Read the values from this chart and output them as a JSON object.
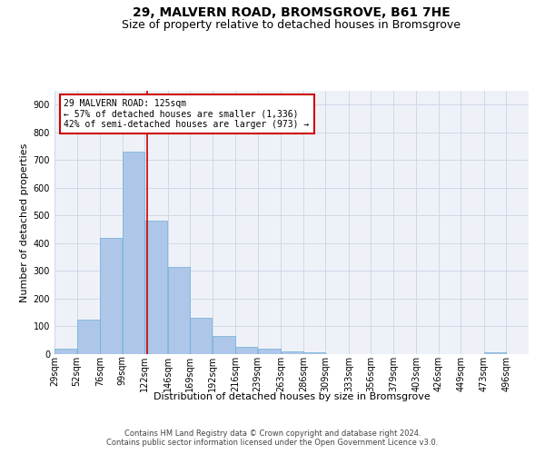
{
  "title": "29, MALVERN ROAD, BROMSGROVE, B61 7HE",
  "subtitle": "Size of property relative to detached houses in Bromsgrove",
  "xlabel": "Distribution of detached houses by size in Bromsgrove",
  "ylabel": "Number of detached properties",
  "bin_labels": [
    "29sqm",
    "52sqm",
    "76sqm",
    "99sqm",
    "122sqm",
    "146sqm",
    "169sqm",
    "192sqm",
    "216sqm",
    "239sqm",
    "263sqm",
    "286sqm",
    "309sqm",
    "333sqm",
    "356sqm",
    "379sqm",
    "403sqm",
    "426sqm",
    "449sqm",
    "473sqm",
    "496sqm"
  ],
  "bin_edges": [
    29,
    52,
    76,
    99,
    122,
    146,
    169,
    192,
    216,
    239,
    263,
    286,
    309,
    333,
    356,
    379,
    403,
    426,
    449,
    473,
    496
  ],
  "bar_heights": [
    20,
    123,
    420,
    730,
    483,
    315,
    132,
    67,
    25,
    20,
    10,
    5,
    0,
    0,
    0,
    0,
    0,
    0,
    0,
    5
  ],
  "bar_color": "#aec6e8",
  "bar_edge_color": "#6aaed6",
  "vline_x": 125,
  "vline_color": "#cc0000",
  "annotation_line1": "29 MALVERN ROAD: 125sqm",
  "annotation_line2": "← 57% of detached houses are smaller (1,336)",
  "annotation_line3": "42% of semi-detached houses are larger (973) →",
  "annotation_box_color": "#ffffff",
  "annotation_box_edge_color": "#cc0000",
  "ylim": [
    0,
    950
  ],
  "yticks": [
    0,
    100,
    200,
    300,
    400,
    500,
    600,
    700,
    800,
    900
  ],
  "grid_color": "#d0d8e8",
  "background_color": "#eef2f8",
  "footer_line1": "Contains HM Land Registry data © Crown copyright and database right 2024.",
  "footer_line2": "Contains public sector information licensed under the Open Government Licence v3.0.",
  "title_fontsize": 10,
  "subtitle_fontsize": 9,
  "ylabel_fontsize": 8,
  "xlabel_fontsize": 8,
  "tick_fontsize": 7,
  "annotation_fontsize": 7,
  "footer_fontsize": 6
}
